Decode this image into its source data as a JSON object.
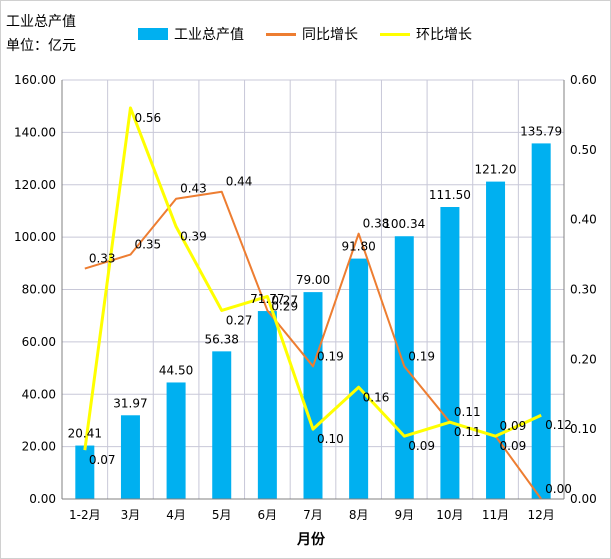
{
  "header": {
    "title_line1": "工业总产值",
    "title_line2": "单位：亿元"
  },
  "colors": {
    "bar": "#00b0f0",
    "yoy": "#ed7d31",
    "mom": "#ffff00",
    "grid": "#c8c8d8"
  },
  "chart_data": {
    "type": "bar",
    "title": "",
    "xlabel": "月份",
    "ylabel": "",
    "categories": [
      "1-2月",
      "3月",
      "4月",
      "5月",
      "6月",
      "7月",
      "8月",
      "9月",
      "10月",
      "11月",
      "12月"
    ],
    "ylim": [
      0,
      160
    ],
    "yticks": [
      "0.00",
      "20.00",
      "40.00",
      "60.00",
      "80.00",
      "100.00",
      "120.00",
      "140.00",
      "160.00"
    ],
    "y2lim": [
      0,
      0.6
    ],
    "y2ticks": [
      "0.00",
      "0.10",
      "0.20",
      "0.30",
      "0.40",
      "0.50",
      "0.60"
    ],
    "grid": true,
    "legend_position": "top",
    "series": [
      {
        "name": "工业总产值",
        "type": "bar",
        "axis": "left",
        "values": [
          20.41,
          31.97,
          44.5,
          56.38,
          71.77,
          79.0,
          91.8,
          100.34,
          111.5,
          121.2,
          135.79
        ],
        "labels": [
          "20.41",
          "31.97",
          "44.50",
          "56.38",
          "71.77",
          "79.00",
          "91.80",
          "100.34",
          "111.50",
          "121.20",
          "135.79"
        ]
      },
      {
        "name": "同比增长",
        "type": "line",
        "axis": "right",
        "values": [
          0.33,
          0.35,
          0.43,
          0.44,
          0.27,
          0.19,
          0.38,
          0.19,
          0.11,
          0.09,
          0.0
        ],
        "labels": [
          "0.33",
          "0.35",
          "0.43",
          "0.44",
          "0.27",
          "0.19",
          "0.38",
          "0.19",
          "0.11",
          "0.09",
          "0.00"
        ]
      },
      {
        "name": "环比增长",
        "type": "line",
        "axis": "right",
        "values": [
          0.07,
          0.56,
          0.39,
          0.27,
          0.29,
          0.1,
          0.16,
          0.09,
          0.11,
          0.09,
          0.12
        ],
        "labels": [
          "0.07",
          "0.56",
          "0.39",
          "0.27",
          "0.29",
          "0.10",
          "0.16",
          "0.09",
          "0.11",
          "0.09",
          "0.12"
        ]
      }
    ]
  }
}
